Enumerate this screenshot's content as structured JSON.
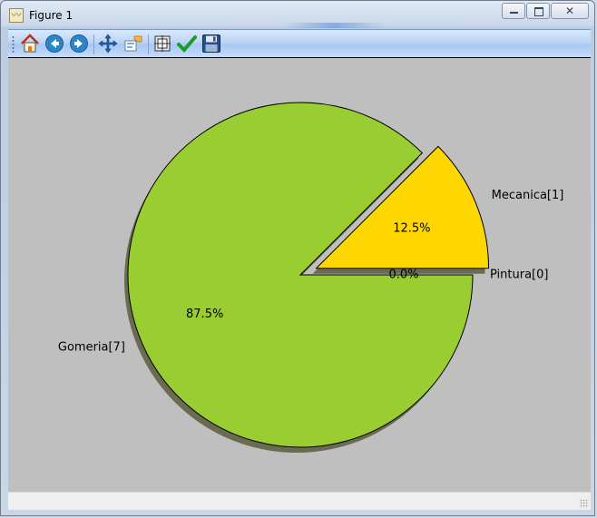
{
  "window": {
    "title": "Figure 1",
    "controls": {
      "minimize_icon": "minimize-icon",
      "maximize_icon": "restore-icon",
      "close_icon": "close-icon"
    }
  },
  "toolbar": {
    "buttons": [
      {
        "name": "home",
        "icon": "home-icon"
      },
      {
        "name": "back",
        "icon": "back-arrow-icon"
      },
      {
        "name": "forward",
        "icon": "forward-arrow-icon"
      },
      {
        "name": "pan",
        "icon": "pan-arrows-icon"
      },
      {
        "name": "zoom",
        "icon": "zoom-rect-icon"
      },
      {
        "name": "subplots",
        "icon": "subplots-config-icon"
      },
      {
        "name": "edit",
        "icon": "checkmark-icon"
      },
      {
        "name": "save",
        "icon": "floppy-disk-icon"
      }
    ]
  },
  "chart_data": {
    "type": "pie",
    "title": "",
    "start_angle_deg": 0,
    "shadow": true,
    "slices": [
      {
        "label": "Pintura[0]",
        "value": 0,
        "pct_label": "0.0%",
        "color": "#ffd700",
        "explode": 0
      },
      {
        "label": "Mecanica[1]",
        "value": 1,
        "pct_label": "12.5%",
        "color": "#ffd700",
        "explode": 0.1
      },
      {
        "label": "Gomeria[7]",
        "value": 7,
        "pct_label": "87.5%",
        "color": "#9acd32",
        "explode": 0
      }
    ],
    "colors": {
      "background": "#bfbfbf",
      "edge": "#000000",
      "shadow": "#6b6b52"
    }
  }
}
